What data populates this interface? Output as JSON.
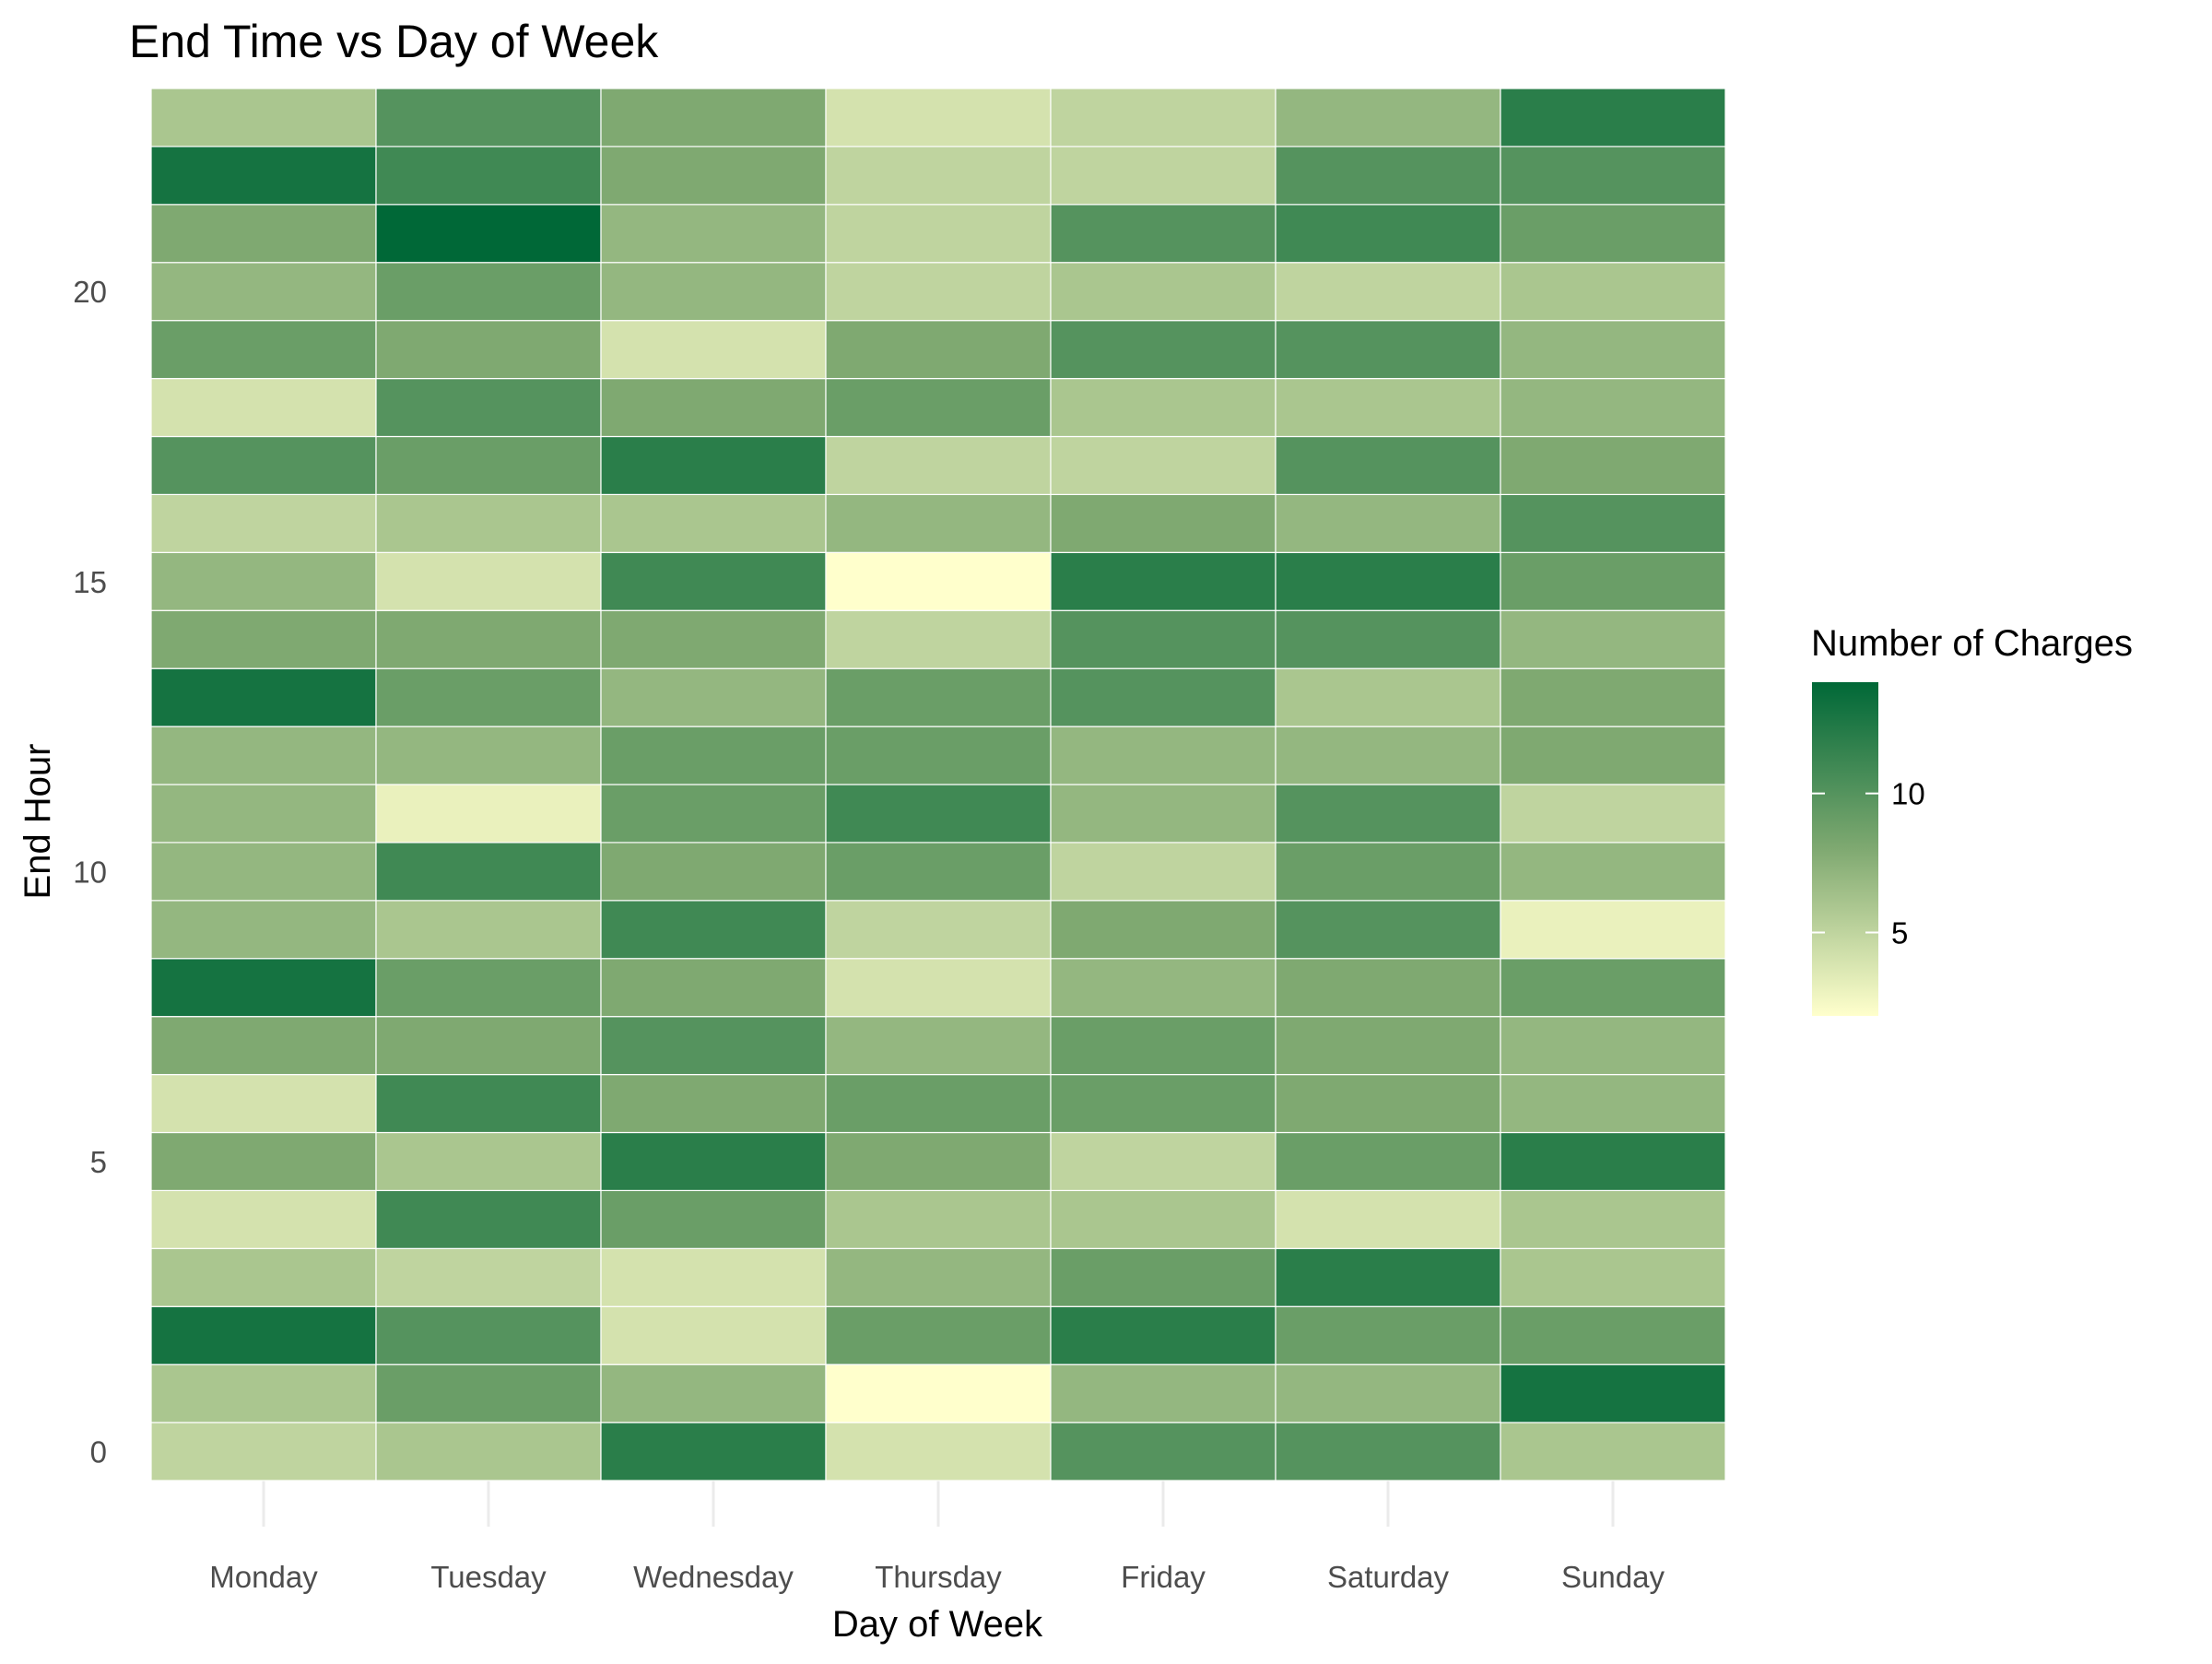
{
  "chart_data": {
    "type": "heatmap",
    "title": "End Time vs Day of Week",
    "xlabel": "Day of Week",
    "ylabel": "End Hour",
    "x": [
      "Monday",
      "Tuesday",
      "Wednesday",
      "Thursday",
      "Friday",
      "Saturday",
      "Sunday"
    ],
    "y": [
      0,
      1,
      2,
      3,
      4,
      5,
      6,
      7,
      8,
      9,
      10,
      11,
      12,
      13,
      14,
      15,
      16,
      17,
      18,
      19,
      20,
      21,
      22,
      23
    ],
    "y_ticks": [
      0,
      5,
      10,
      15,
      20
    ],
    "values": [
      [
        5,
        6,
        12,
        4,
        10,
        10,
        6
      ],
      [
        6,
        9,
        7,
        2,
        7,
        7,
        13
      ],
      [
        13,
        10,
        4,
        9,
        12,
        9,
        9
      ],
      [
        6,
        5,
        4,
        7,
        9,
        12,
        6
      ],
      [
        4,
        11,
        9,
        6,
        6,
        4,
        6
      ],
      [
        8,
        6,
        12,
        8,
        5,
        9,
        12
      ],
      [
        4,
        11,
        8,
        9,
        9,
        8,
        7
      ],
      [
        8,
        8,
        10,
        7,
        9,
        8,
        7
      ],
      [
        13,
        9,
        8,
        4,
        7,
        8,
        9
      ],
      [
        7,
        6,
        11,
        5,
        8,
        10,
        3
      ],
      [
        7,
        11,
        8,
        9,
        5,
        9,
        7
      ],
      [
        7,
        3,
        9,
        11,
        7,
        10,
        5
      ],
      [
        7,
        7,
        9,
        9,
        7,
        7,
        8
      ],
      [
        13,
        9,
        7,
        9,
        10,
        6,
        8
      ],
      [
        8,
        8,
        8,
        5,
        10,
        10,
        7
      ],
      [
        7,
        4,
        11,
        2,
        12,
        12,
        9
      ],
      [
        5,
        6,
        6,
        7,
        8,
        7,
        10
      ],
      [
        10,
        9,
        12,
        5,
        5,
        10,
        8
      ],
      [
        4,
        10,
        8,
        9,
        6,
        6,
        7
      ],
      [
        9,
        8,
        4,
        8,
        10,
        10,
        7
      ],
      [
        7,
        9,
        7,
        5,
        6,
        5,
        6
      ],
      [
        8,
        14,
        7,
        5,
        10,
        11,
        9
      ],
      [
        13,
        11,
        8,
        5,
        5,
        10,
        10
      ],
      [
        6,
        10,
        8,
        4,
        5,
        7,
        12
      ]
    ],
    "color_scale": {
      "title": "Number of Charges",
      "min": 2,
      "max": 14,
      "ticks": [
        5,
        10
      ],
      "low_color": "#ffffcc",
      "mid_color": "#7fa971",
      "high_color": "#006837"
    },
    "grid": true,
    "legend_position": "right"
  }
}
